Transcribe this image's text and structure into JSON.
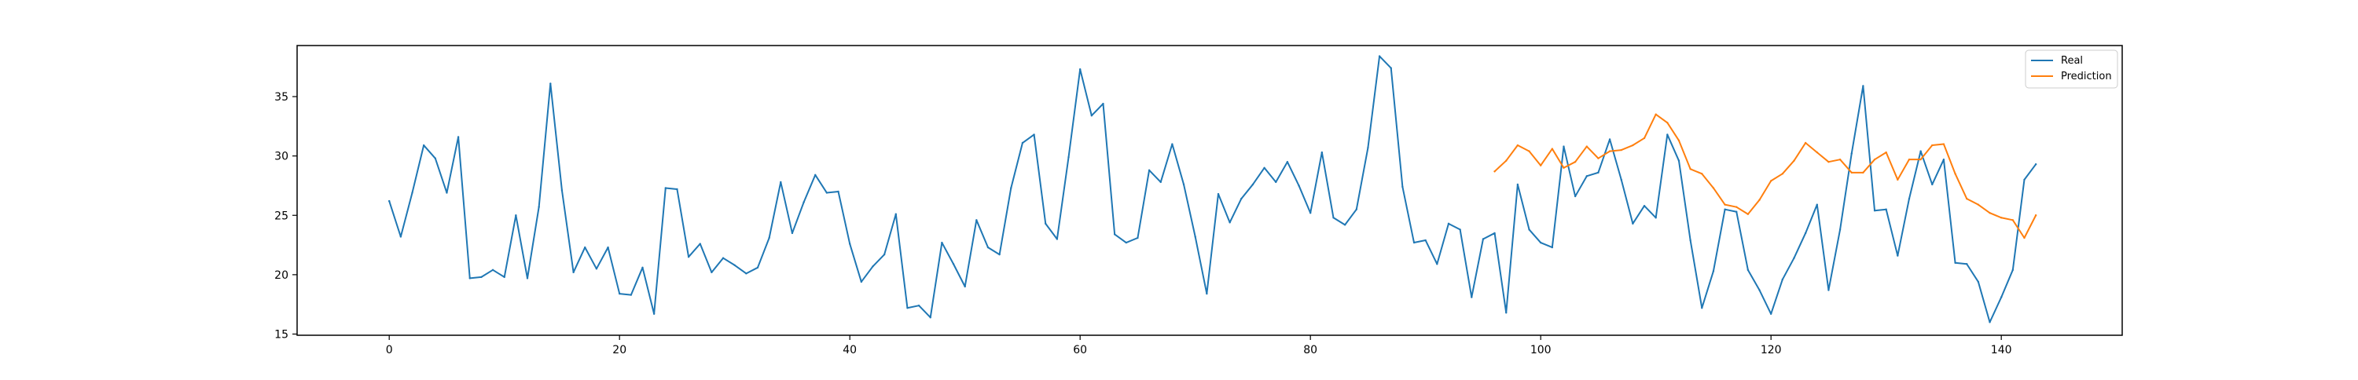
{
  "chart_data": {
    "type": "line",
    "title": "",
    "xlabel": "",
    "ylabel": "",
    "xlim": [
      -8,
      150.5
    ],
    "ylim": [
      14.9,
      39.3
    ],
    "xticks": [
      0,
      20,
      40,
      60,
      80,
      100,
      120,
      140
    ],
    "yticks": [
      15,
      20,
      25,
      30,
      35
    ],
    "grid": false,
    "legend_position": "top-right",
    "series": [
      {
        "name": "Real",
        "color": "#1f77b4",
        "x": [
          0,
          1,
          2,
          3,
          4,
          5,
          6,
          7,
          8,
          9,
          10,
          11,
          12,
          13,
          14,
          15,
          16,
          17,
          18,
          19,
          20,
          21,
          22,
          23,
          24,
          25,
          26,
          27,
          28,
          29,
          30,
          31,
          32,
          33,
          34,
          35,
          36,
          37,
          38,
          39,
          40,
          41,
          42,
          43,
          44,
          45,
          46,
          47,
          48,
          49,
          50,
          51,
          52,
          53,
          54,
          55,
          56,
          57,
          58,
          59,
          60,
          61,
          62,
          63,
          64,
          65,
          66,
          67,
          68,
          69,
          70,
          71,
          72,
          73,
          74,
          75,
          76,
          77,
          78,
          79,
          80,
          81,
          82,
          83,
          84,
          85,
          86,
          87,
          88,
          89,
          90,
          91,
          92,
          93,
          94,
          95,
          96,
          97,
          98,
          99,
          100,
          101,
          102,
          103,
          104,
          105,
          106,
          107,
          108,
          109,
          110,
          111,
          112,
          113,
          114,
          115,
          116,
          117,
          118,
          119,
          120,
          121,
          122,
          123,
          124,
          125,
          126,
          127,
          128,
          129,
          130,
          131,
          132,
          133,
          134,
          135,
          136,
          137,
          138,
          139,
          140,
          141,
          142,
          143
        ],
        "values": [
          26.2,
          23.2,
          26.9,
          30.9,
          29.8,
          26.9,
          31.6,
          19.7,
          19.8,
          20.4,
          19.8,
          25.0,
          19.7,
          25.7,
          36.1,
          27.1,
          20.2,
          22.3,
          20.5,
          22.3,
          18.4,
          18.3,
          20.6,
          16.7,
          27.3,
          27.2,
          21.5,
          22.6,
          20.2,
          21.4,
          20.8,
          20.1,
          20.6,
          23.1,
          27.8,
          23.5,
          26.1,
          28.4,
          26.9,
          27.0,
          22.6,
          19.4,
          20.7,
          21.7,
          25.1,
          17.2,
          17.4,
          16.4,
          22.7,
          20.9,
          19.0,
          24.6,
          22.3,
          21.7,
          27.3,
          31.1,
          31.8,
          24.3,
          23.0,
          29.9,
          37.3,
          33.4,
          34.4,
          23.4,
          22.7,
          23.1,
          28.8,
          27.8,
          31.0,
          27.6,
          23.2,
          18.4,
          26.8,
          24.4,
          26.4,
          27.6,
          29.0,
          27.8,
          29.5,
          27.5,
          25.2,
          30.3,
          24.8,
          24.2,
          25.5,
          30.7,
          38.4,
          37.4,
          27.4,
          22.7,
          22.9,
          20.9,
          24.3,
          23.8,
          18.1,
          23.0,
          23.5,
          16.8,
          27.6,
          23.8,
          22.7,
          22.3,
          30.8,
          26.6,
          28.3,
          28.6,
          31.4,
          28.0,
          24.3,
          25.8,
          24.8,
          31.8,
          29.6,
          22.9,
          17.2,
          20.3,
          25.5,
          25.3,
          20.4,
          18.7,
          16.7,
          19.6,
          21.4,
          23.5,
          25.9,
          18.7,
          23.8,
          30.2,
          35.9,
          25.4,
          25.5,
          21.6,
          26.4,
          30.4,
          27.6,
          29.7,
          21.0,
          20.9,
          19.4,
          16.0,
          18.1,
          20.4,
          28.0,
          29.3
        ]
      },
      {
        "name": "Prediction",
        "color": "#ff7f0e",
        "x": [
          96,
          97,
          98,
          99,
          100,
          101,
          102,
          103,
          104,
          105,
          106,
          107,
          108,
          109,
          110,
          111,
          112,
          113,
          114,
          115,
          116,
          117,
          118,
          119,
          120,
          121,
          122,
          123,
          124,
          125,
          126,
          127,
          128,
          129,
          130,
          131,
          132,
          133,
          134,
          135,
          136,
          137,
          138,
          139,
          140,
          141,
          142,
          143
        ],
        "values": [
          28.7,
          29.6,
          30.9,
          30.4,
          29.2,
          30.6,
          29.0,
          29.5,
          30.8,
          29.8,
          30.4,
          30.5,
          30.9,
          31.5,
          33.5,
          32.8,
          31.3,
          28.9,
          28.5,
          27.3,
          25.9,
          25.7,
          25.1,
          26.3,
          27.9,
          28.5,
          29.6,
          31.1,
          30.3,
          29.5,
          29.7,
          28.6,
          28.6,
          29.7,
          30.3,
          28.0,
          29.7,
          29.7,
          30.9,
          31.0,
          28.5,
          26.4,
          25.9,
          25.2,
          24.8,
          24.6,
          23.1,
          25.0
        ]
      }
    ]
  }
}
